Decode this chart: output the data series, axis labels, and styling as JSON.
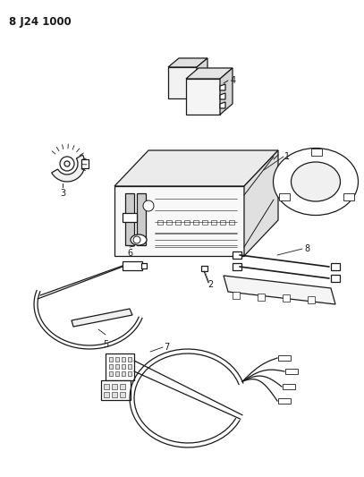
{
  "title": "8 J24 1000",
  "bg_color": "#ffffff",
  "line_color": "#1a1a1a",
  "fig_width": 4.07,
  "fig_height": 5.33,
  "dpi": 100
}
